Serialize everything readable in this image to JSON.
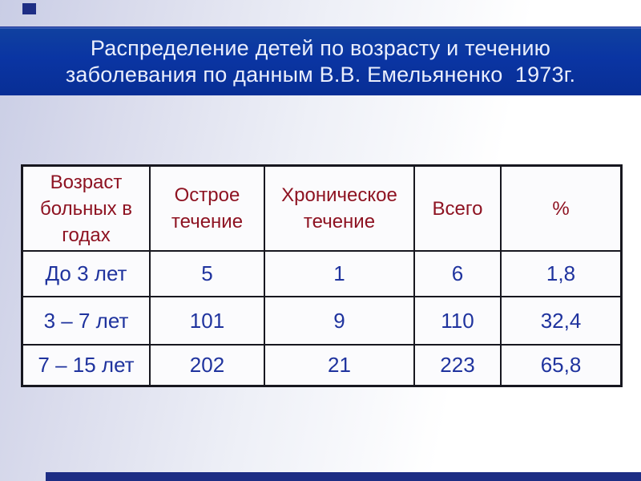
{
  "title": {
    "line1": "Распределение детей по возрасту и течению",
    "line2": "заболевания по данным В.В. Емельяненко  1973г."
  },
  "table": {
    "headers": [
      "Возраст больных в годах",
      "Острое течение",
      "Хроническое течение",
      "Всего",
      "%"
    ],
    "rows": [
      [
        "До 3 лет",
        "5",
        "1",
        "6",
        "1,8"
      ],
      [
        "3 – 7 лет",
        "101",
        "9",
        "110",
        "32,4"
      ],
      [
        "7 – 15 лет",
        "202",
        "21",
        "223",
        "65,8"
      ]
    ]
  },
  "colors": {
    "title_bar_blue": "#0a35a3",
    "title_text": "#eaeefc",
    "header_text_red": "#8e1322",
    "data_text_blue": "#1f339e",
    "table_border": "#17171f",
    "frame_accent_navy": "#1d2d84",
    "background_left": "#c9cde5",
    "background_right": "#ffffff"
  }
}
